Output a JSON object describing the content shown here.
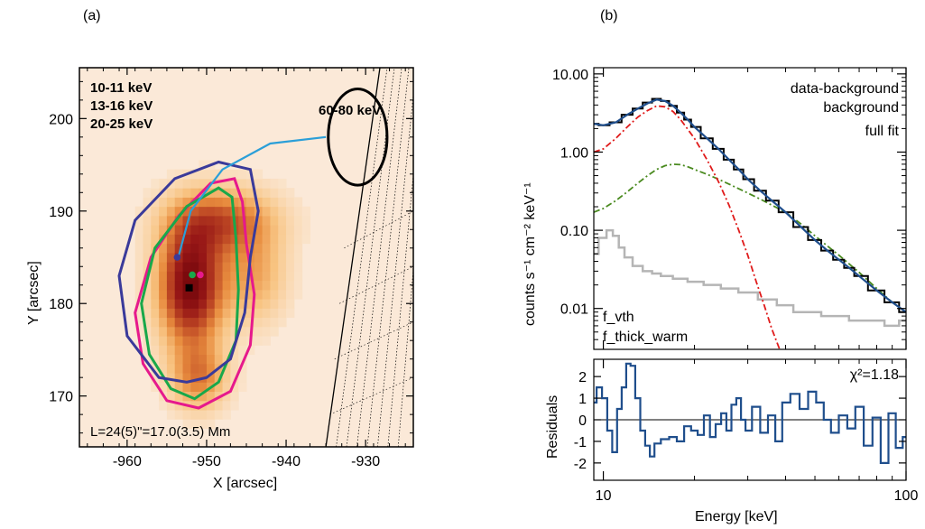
{
  "panels": {
    "a_label": "(a)",
    "b_label": "(b)"
  },
  "chart_data": [
    {
      "type": "image_contour",
      "panel": "(a)",
      "xlabel": "X [arcsec]",
      "ylabel": "Y [arcsec]",
      "xlim": [
        -966,
        -924
      ],
      "ylim": [
        164.5,
        205.5
      ],
      "xticks": [
        -960,
        -950,
        -940,
        -930
      ],
      "xtick_labels": [
        "-960",
        "-950",
        "-940",
        "-930"
      ],
      "yticks": [
        170,
        180,
        190,
        200
      ],
      "ytick_labels": [
        "170",
        "180",
        "190",
        "200"
      ],
      "colormap": "light-orange to dark-red (heat)",
      "legend": [
        {
          "label": "10-11 keV",
          "color": "#e6198c"
        },
        {
          "label": "13-16 keV",
          "color": "#19a84a"
        },
        {
          "label": "20-25 keV",
          "color": "#3a3a9a"
        }
      ],
      "label_60_80": "60-80 keV",
      "annotation": "L=24(5)\"=17.0(3.5) Mm",
      "annotation_color": "#2b9fd8",
      "centroids": [
        {
          "name": "10-11 keV",
          "x": -950.8,
          "y": 183.1,
          "color": "#e6198c"
        },
        {
          "name": "13-16 keV",
          "x": -951.8,
          "y": 183.1,
          "color": "#19a84a"
        },
        {
          "name": "20-25 keV",
          "x": -953.7,
          "y": 185.0,
          "color": "#3a3a9a"
        },
        {
          "name": "peak",
          "x": -952.2,
          "y": 181.7,
          "color": "#000000"
        }
      ],
      "loop_path": [
        {
          "x": -953.5,
          "y": 185.2
        },
        {
          "x": -952.0,
          "y": 190.0
        },
        {
          "x": -948.0,
          "y": 194.5
        },
        {
          "x": -942.0,
          "y": 197.3
        },
        {
          "x": -935.0,
          "y": 198.0
        }
      ],
      "contour_60_80": {
        "cx": -931.0,
        "cy": 198.0,
        "rx": 3.7,
        "ry": 5.2
      },
      "limb": "solar limb with dotted grid lines at right"
    },
    {
      "type": "line",
      "panel": "(b)",
      "ylabel": "counts s⁻¹ cm⁻² keV⁻¹",
      "xlabel": "Energy [keV]",
      "xscale": "log",
      "yscale": "log",
      "xlim": [
        9.3,
        100
      ],
      "ylim": [
        0.003,
        12
      ],
      "xtick_labels": [
        "10",
        "100"
      ],
      "ytick_labels": [
        "10.00",
        "1.00",
        "0.10",
        "0.01"
      ],
      "legend": [
        {
          "label": "data-background",
          "color": "#000000"
        },
        {
          "label": "background",
          "color": "#b5b5b5"
        },
        {
          "label": "full fit",
          "color": "#1f4e8c"
        }
      ],
      "component_labels": [
        {
          "label": "f_vth",
          "color": "#e01b1b"
        },
        {
          "label": "f_thick_warm",
          "color": "#4a8a1f"
        }
      ],
      "series": [
        {
          "name": "data-background",
          "x": [
            9.3,
            10,
            11,
            12,
            13,
            14,
            15,
            16,
            17,
            18,
            19,
            20,
            22,
            24,
            26,
            28,
            30,
            33,
            36,
            40,
            45,
            50,
            55,
            60,
            65,
            70,
            80,
            90,
            100
          ],
          "y": [
            2.3,
            2.2,
            2.4,
            3.0,
            3.6,
            4.3,
            4.8,
            4.5,
            3.9,
            3.2,
            2.6,
            2.1,
            1.5,
            1.1,
            0.8,
            0.6,
            0.45,
            0.32,
            0.24,
            0.17,
            0.11,
            0.075,
            0.055,
            0.042,
            0.033,
            0.026,
            0.017,
            0.012,
            0.009
          ]
        },
        {
          "name": "background",
          "x": [
            9.3,
            10,
            10.5,
            11,
            11.5,
            12,
            13,
            14,
            15,
            16,
            18,
            20,
            23,
            26,
            30,
            35,
            40,
            45,
            50,
            55,
            60,
            70,
            80,
            90,
            100
          ],
          "y": [
            0.05,
            0.08,
            0.1,
            0.085,
            0.06,
            0.045,
            0.035,
            0.03,
            0.028,
            0.026,
            0.024,
            0.022,
            0.02,
            0.018,
            0.016,
            0.013,
            0.011,
            0.009,
            0.009,
            0.008,
            0.008,
            0.007,
            0.007,
            0.006,
            0.007
          ]
        },
        {
          "name": "full fit",
          "x": [
            9.3,
            10,
            11,
            12,
            13,
            14,
            15,
            16,
            17,
            18,
            19,
            20,
            22,
            24,
            26,
            28,
            30,
            33,
            36,
            40,
            45,
            50,
            55,
            60,
            65,
            70,
            80,
            90,
            100
          ],
          "y": [
            2.3,
            2.2,
            2.4,
            3.0,
            3.6,
            4.2,
            4.7,
            4.5,
            3.9,
            3.2,
            2.6,
            2.1,
            1.5,
            1.1,
            0.8,
            0.6,
            0.45,
            0.32,
            0.24,
            0.17,
            0.11,
            0.075,
            0.055,
            0.042,
            0.033,
            0.026,
            0.017,
            0.012,
            0.009
          ]
        },
        {
          "name": "f_vth",
          "x": [
            9.3,
            10,
            11,
            12,
            13,
            14,
            15,
            16,
            17,
            18,
            20,
            22,
            24,
            26,
            28,
            30,
            32,
            34,
            36,
            38,
            40
          ],
          "y": [
            1.0,
            1.1,
            1.5,
            2.1,
            2.8,
            3.4,
            3.9,
            3.8,
            3.3,
            2.6,
            1.5,
            0.8,
            0.42,
            0.21,
            0.1,
            0.048,
            0.022,
            0.011,
            0.0055,
            0.0032,
            0.002
          ]
        },
        {
          "name": "f_thick_warm",
          "x": [
            9.3,
            10,
            11,
            12,
            13,
            14,
            15,
            16,
            17,
            18,
            19,
            20,
            22,
            24,
            26,
            28,
            30,
            33,
            36,
            40,
            45,
            50,
            55,
            60,
            65,
            70,
            80,
            90,
            100
          ],
          "y": [
            0.17,
            0.19,
            0.24,
            0.31,
            0.4,
            0.5,
            0.6,
            0.67,
            0.7,
            0.69,
            0.65,
            0.6,
            0.52,
            0.45,
            0.39,
            0.34,
            0.3,
            0.25,
            0.21,
            0.17,
            0.12,
            0.085,
            0.063,
            0.048,
            0.037,
            0.029,
            0.018,
            0.012,
            0.009
          ]
        }
      ]
    },
    {
      "type": "line",
      "panel": "(b) residuals",
      "ylabel": "Residuals",
      "xlabel": "Energy [keV]",
      "xscale": "log",
      "xlim": [
        9.3,
        100
      ],
      "ylim": [
        -2.8,
        2.8
      ],
      "yticks": [
        -2,
        -1,
        0,
        1,
        2
      ],
      "ytick_labels": [
        "-2",
        "-1",
        "0",
        "1",
        "2"
      ],
      "chi2_label": "χ²=1.18",
      "series": [
        {
          "name": "residuals",
          "x": [
            9.3,
            9.7,
            10.1,
            10.5,
            10.9,
            11.3,
            11.7,
            12.1,
            12.5,
            13.0,
            13.5,
            14.0,
            14.5,
            15.0,
            16.0,
            17.0,
            18.0,
            19.0,
            20.0,
            21.0,
            22.0,
            23.0,
            24.0,
            25.0,
            26.0,
            27.0,
            28.0,
            29.0,
            30.0,
            32.0,
            34.0,
            36.0,
            38.0,
            40.0,
            43.0,
            46.0,
            49.0,
            52.0,
            55.0,
            58.0,
            62.0,
            66.0,
            70.0,
            75.0,
            80.0,
            85.0,
            90.0,
            95.0,
            100.0
          ],
          "y": [
            0.8,
            1.5,
            1.0,
            -0.5,
            -1.5,
            0.5,
            1.5,
            2.6,
            2.5,
            1.0,
            -0.5,
            -1.2,
            -1.7,
            -1.1,
            -0.9,
            -0.8,
            -1.0,
            -0.3,
            -0.5,
            -0.7,
            0.2,
            -0.8,
            -0.2,
            0.3,
            -0.5,
            0.7,
            1.0,
            0.0,
            -0.5,
            0.6,
            -0.6,
            0.2,
            -1.0,
            0.8,
            1.2,
            0.5,
            1.3,
            0.8,
            0.0,
            -0.6,
            0.2,
            -0.4,
            0.6,
            -1.2,
            0.1,
            -2.0,
            0.3,
            -1.3,
            -0.8
          ]
        }
      ]
    }
  ]
}
